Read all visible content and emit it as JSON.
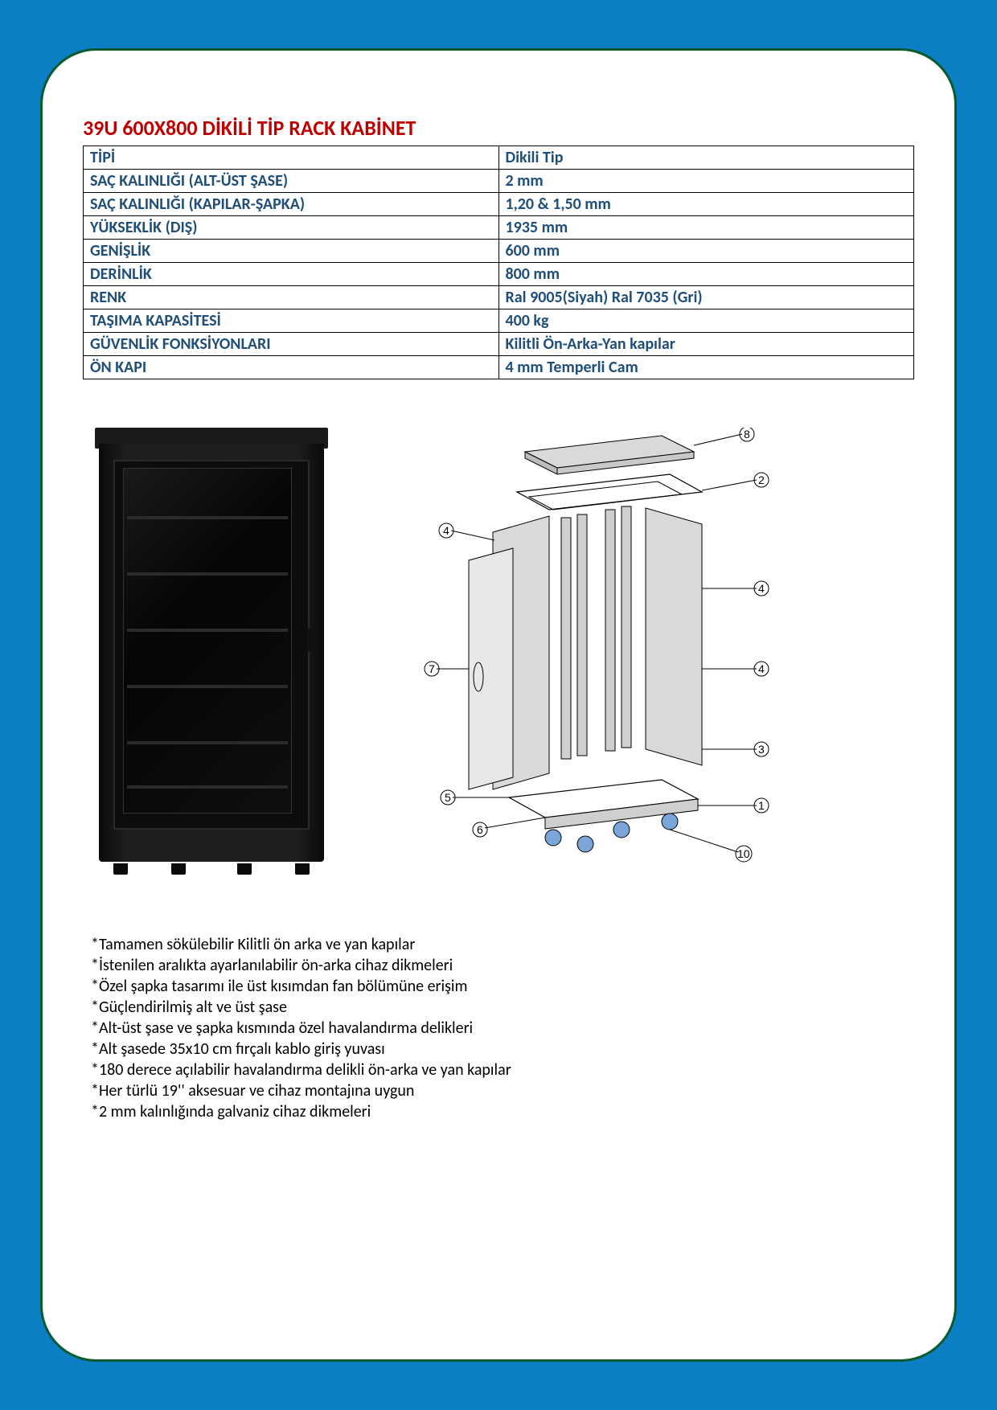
{
  "title": "39U 600X800 DİKİLİ TİP RACK KABİNET",
  "colors": {
    "page_bg": "#0b7ec4",
    "panel_bg": "#ffffff",
    "panel_border": "#0a5a2f",
    "title": "#c00000",
    "table_text": "#1f4e79",
    "table_border": "#000000",
    "body_text": "#000000"
  },
  "spec_table": {
    "rows": [
      {
        "label": "TİPİ",
        "value": "Dikili Tip"
      },
      {
        "label": "SAÇ KALINLIĞI (ALT-ÜST ŞASE)",
        "value": "2 mm"
      },
      {
        "label": "SAÇ KALINLIĞI (KAPILAR-ŞAPKA)",
        "value": "1,20 & 1,50 mm"
      },
      {
        "label": "YÜKSEKLİK (DIŞ)",
        "value": "1935 mm"
      },
      {
        "label": "GENİŞLİK",
        "value": "600 mm"
      },
      {
        "label": "DERİNLİK",
        "value": "800 mm"
      },
      {
        "label": "RENK",
        "value": "Ral 9005(Siyah) Ral 7035 (Gri)"
      },
      {
        "label": "TAŞIMA KAPASİTESİ",
        "value": "400 kg"
      },
      {
        "label": "GÜVENLİK FONKSİYONLARI",
        "value": "Kilitli Ön-Arka-Yan kapılar"
      },
      {
        "label": "ÖN KAPI",
        "value": "4 mm Temperli Cam"
      }
    ]
  },
  "cabinet_image": {
    "shelf_positions": [
      110,
      180,
      250,
      320,
      390,
      445
    ]
  },
  "exploded_diagram": {
    "callouts": [
      "1",
      "2",
      "3",
      "4",
      "5",
      "6",
      "7",
      "8",
      "10"
    ],
    "line_color": "#000000",
    "panel_fill": "#d9d9d9",
    "panel_stroke": "#000000",
    "accent_fill": "#7aa5d8"
  },
  "features": [
    "*Tamamen sökülebilir Kilitli ön arka ve yan kapılar",
    "*İstenilen aralıkta ayarlanılabilir ön-arka cihaz dikmeleri",
    "*Özel şapka tasarımı ile üst kısımdan fan bölümüne erişim",
    "*Güçlendirilmiş alt ve üst şase",
    "*Alt-üst şase ve şapka kısmında özel havalandırma delikleri",
    "*Alt şasede 35x10 cm fırçalı kablo giriş yuvası",
    "*180 derece açılabilir havalandırma delikli ön-arka ve yan kapılar",
    "*Her türlü 19'' aksesuar ve cihaz montajına uygun",
    "*2 mm kalınlığında galvaniz cihaz dikmeleri"
  ]
}
